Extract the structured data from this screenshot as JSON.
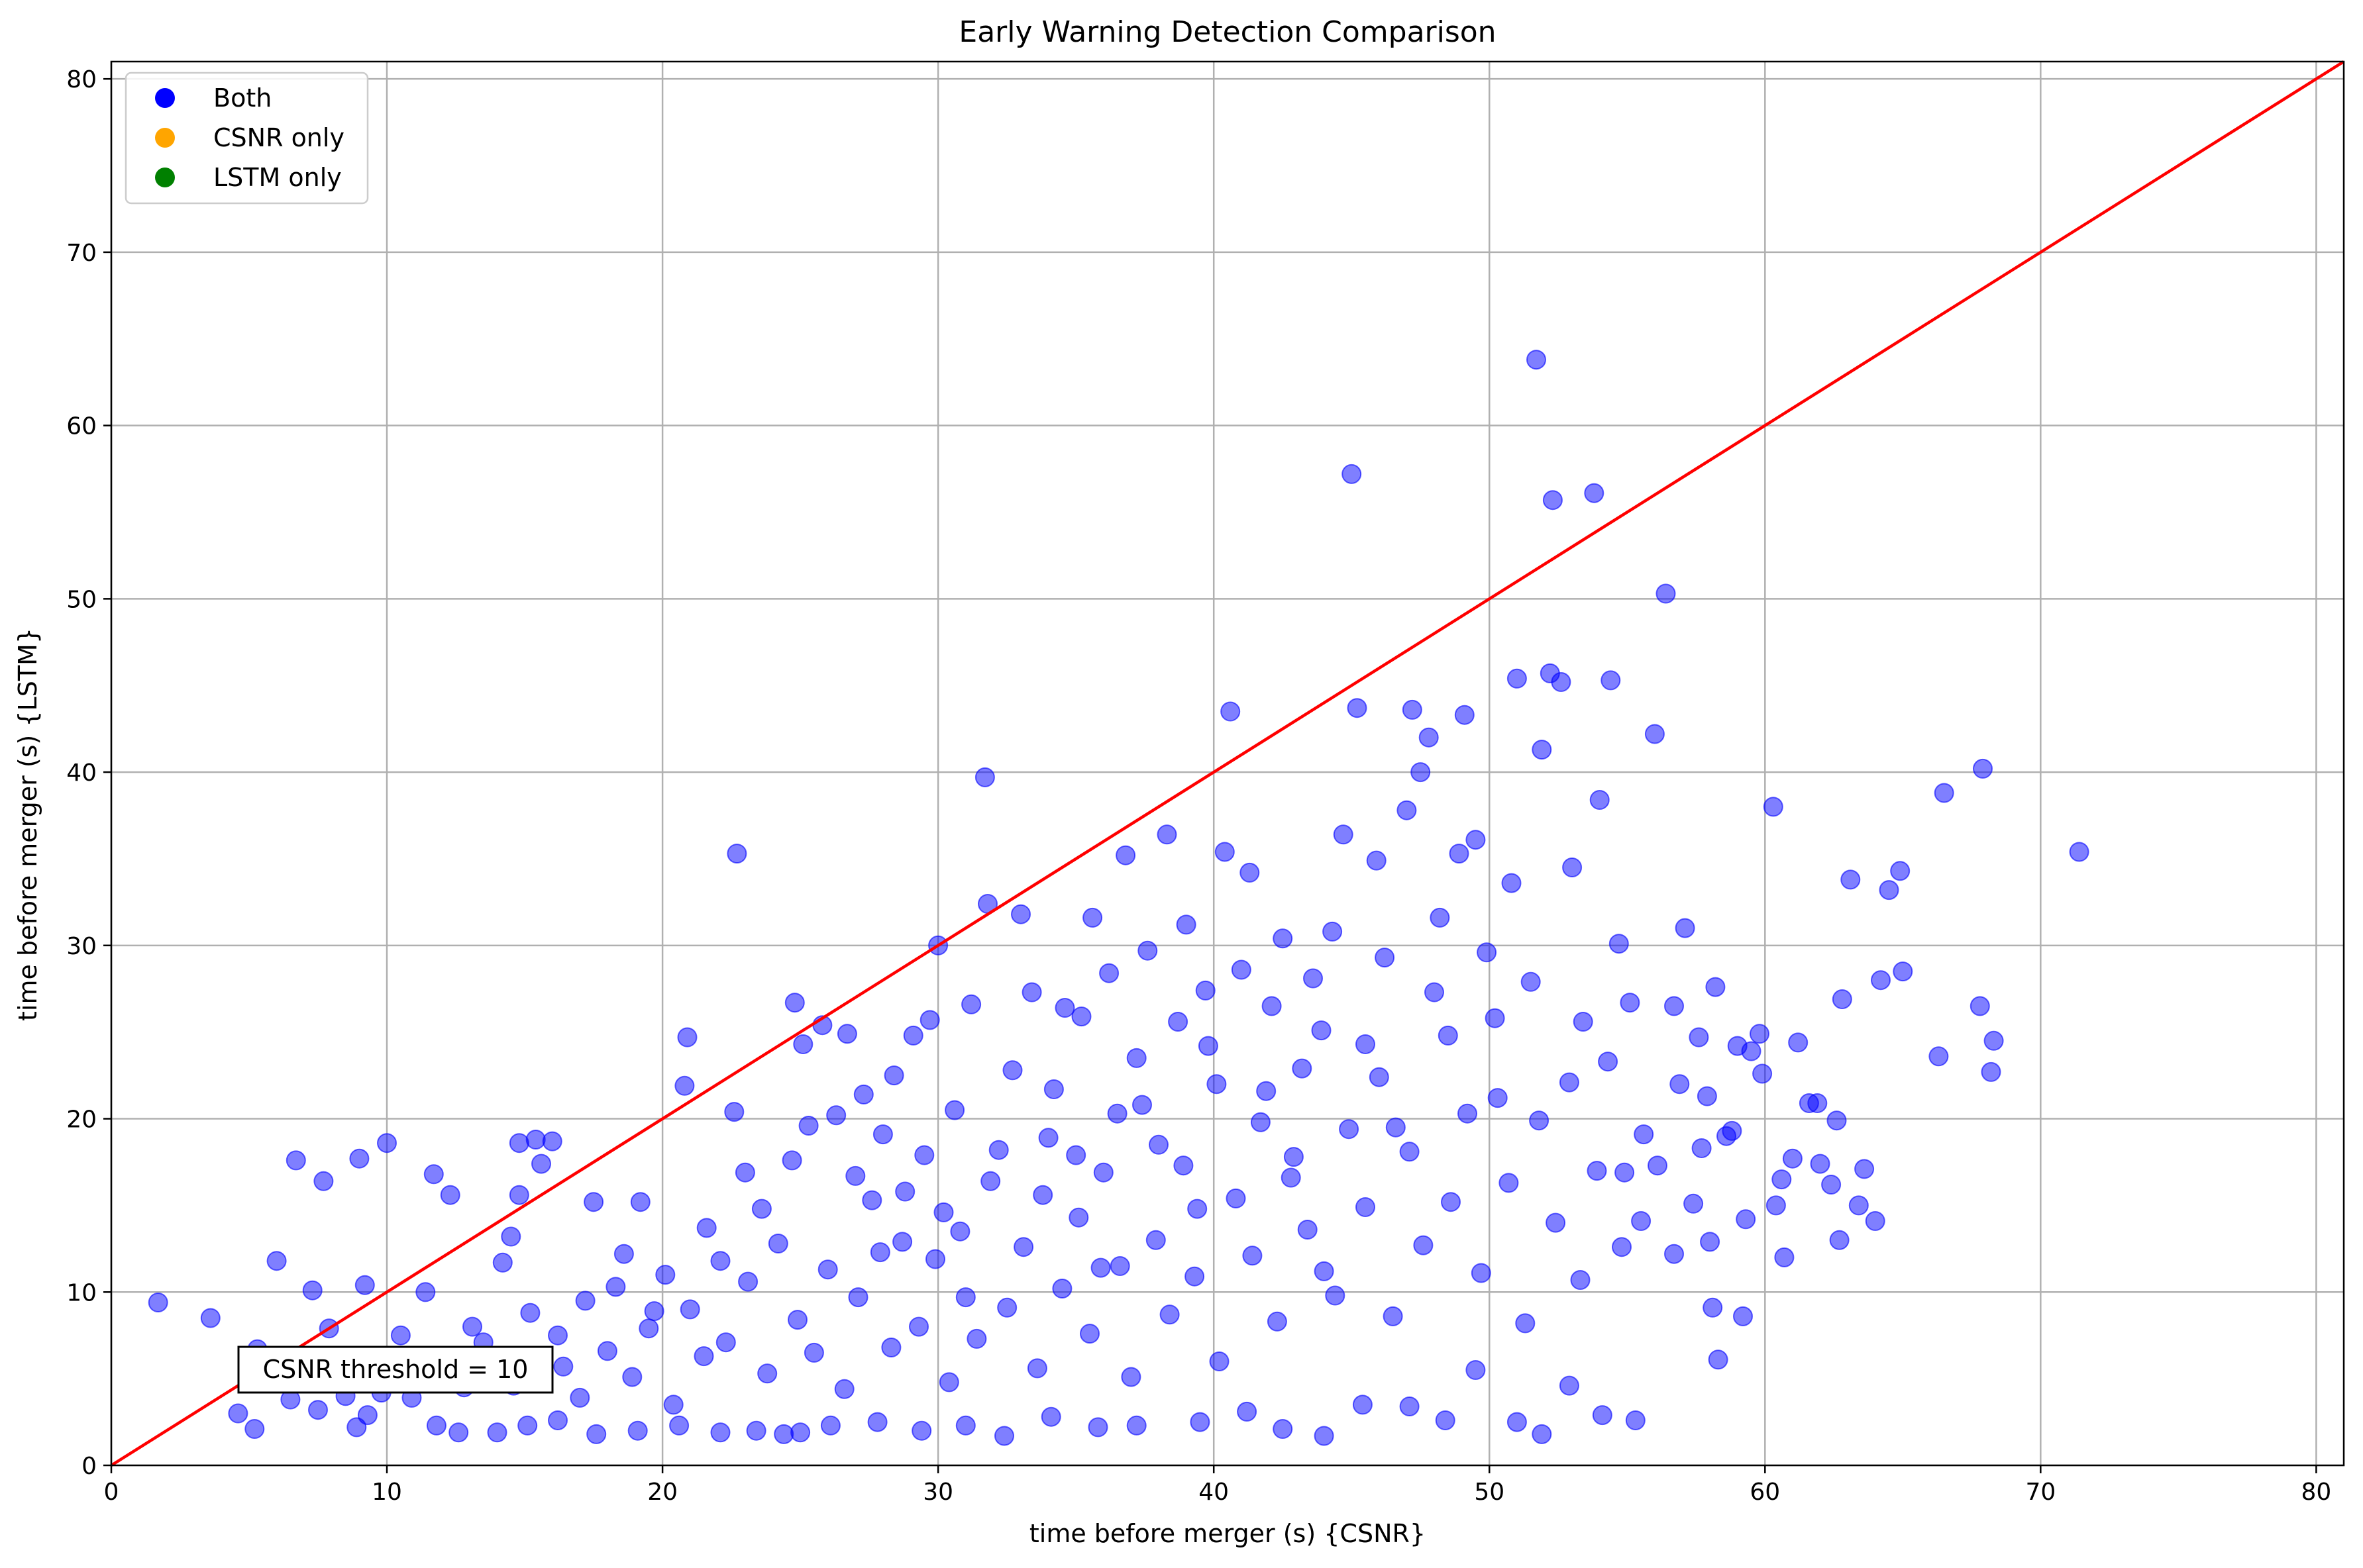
{
  "chart_data": {
    "type": "scatter",
    "title": "Early Warning Detection Comparison",
    "xlabel": "time before merger (s) {CSNR}",
    "ylabel": "time before merger (s) {LSTM}",
    "xlim": [
      0,
      81
    ],
    "ylim": [
      0,
      81
    ],
    "xticks": [
      0,
      10,
      20,
      30,
      40,
      50,
      60,
      70,
      80
    ],
    "yticks": [
      0,
      10,
      20,
      30,
      40,
      50,
      60,
      70,
      80
    ],
    "grid": true,
    "legend_position": "top-left",
    "legend": [
      {
        "label": "Both",
        "color": "#0000ff"
      },
      {
        "label": "CSNR only",
        "color": "#ffa500"
      },
      {
        "label": "LSTM only",
        "color": "#008000"
      }
    ],
    "reference_line": {
      "x": [
        0,
        81
      ],
      "y": [
        0,
        81
      ],
      "color": "#ff0000"
    },
    "annotation": {
      "text": "CSNR threshold = 10",
      "x": 10.2,
      "y": 5.4
    },
    "series": [
      {
        "name": "Both",
        "color": "#0000ff",
        "points": [
          [
            1.7,
            9.4
          ],
          [
            3.6,
            8.5
          ],
          [
            4.6,
            3.0
          ],
          [
            5.2,
            2.1
          ],
          [
            5.3,
            6.7
          ],
          [
            6.0,
            11.8
          ],
          [
            6.5,
            3.8
          ],
          [
            6.7,
            17.6
          ],
          [
            7.3,
            10.1
          ],
          [
            7.7,
            16.4
          ],
          [
            7.9,
            7.9
          ],
          [
            8.9,
            2.2
          ],
          [
            9.0,
            17.7
          ],
          [
            9.2,
            10.4
          ],
          [
            10.0,
            18.6
          ],
          [
            10.5,
            7.5
          ],
          [
            11.4,
            10.0
          ],
          [
            11.7,
            16.8
          ],
          [
            12.3,
            15.6
          ],
          [
            13.1,
            8.0
          ],
          [
            13.7,
            6.2
          ],
          [
            14.2,
            11.7
          ],
          [
            14.5,
            13.2
          ],
          [
            14.8,
            15.6
          ],
          [
            14.8,
            18.6
          ],
          [
            15.4,
            18.8
          ],
          [
            15.6,
            17.4
          ],
          [
            16.0,
            18.7
          ],
          [
            16.2,
            7.5
          ],
          [
            17.0,
            3.9
          ],
          [
            17.5,
            15.2
          ],
          [
            18.3,
            10.3
          ],
          [
            18.9,
            5.1
          ],
          [
            19.2,
            15.2
          ],
          [
            19.7,
            8.9
          ],
          [
            20.4,
            3.5
          ],
          [
            20.8,
            21.9
          ],
          [
            20.9,
            24.7
          ],
          [
            21.5,
            6.3
          ],
          [
            22.1,
            11.8
          ],
          [
            22.6,
            20.4
          ],
          [
            22.7,
            35.3
          ],
          [
            23.0,
            16.9
          ],
          [
            23.6,
            14.8
          ],
          [
            24.4,
            1.8
          ],
          [
            24.7,
            17.6
          ],
          [
            24.8,
            26.7
          ],
          [
            25.1,
            24.3
          ],
          [
            25.3,
            19.6
          ],
          [
            25.8,
            25.4
          ],
          [
            26.3,
            20.2
          ],
          [
            26.7,
            24.9
          ],
          [
            27.0,
            16.7
          ],
          [
            27.3,
            21.4
          ],
          [
            27.6,
            15.3
          ],
          [
            28.0,
            19.1
          ],
          [
            28.4,
            22.5
          ],
          [
            28.7,
            12.9
          ],
          [
            29.1,
            24.8
          ],
          [
            29.5,
            17.9
          ],
          [
            29.7,
            25.7
          ],
          [
            30.0,
            30.0
          ],
          [
            30.2,
            14.6
          ],
          [
            30.6,
            20.5
          ],
          [
            31.0,
            9.7
          ],
          [
            31.2,
            26.6
          ],
          [
            31.7,
            39.7
          ],
          [
            31.8,
            32.4
          ],
          [
            32.2,
            18.2
          ],
          [
            32.7,
            22.8
          ],
          [
            33.0,
            31.8
          ],
          [
            33.4,
            27.3
          ],
          [
            33.8,
            15.6
          ],
          [
            34.2,
            21.7
          ],
          [
            34.6,
            26.4
          ],
          [
            35.0,
            17.9
          ],
          [
            35.2,
            25.9
          ],
          [
            35.6,
            31.6
          ],
          [
            35.9,
            11.4
          ],
          [
            36.2,
            28.4
          ],
          [
            36.5,
            20.3
          ],
          [
            36.8,
            35.2
          ],
          [
            37.2,
            23.5
          ],
          [
            37.6,
            29.7
          ],
          [
            38.0,
            18.5
          ],
          [
            38.3,
            36.4
          ],
          [
            38.7,
            25.6
          ],
          [
            39.0,
            31.2
          ],
          [
            39.4,
            14.8
          ],
          [
            39.7,
            27.4
          ],
          [
            40.1,
            22.0
          ],
          [
            40.4,
            35.4
          ],
          [
            40.6,
            43.5
          ],
          [
            41.0,
            28.6
          ],
          [
            41.3,
            34.2
          ],
          [
            41.7,
            19.8
          ],
          [
            42.1,
            26.5
          ],
          [
            42.5,
            30.4
          ],
          [
            42.8,
            16.6
          ],
          [
            43.2,
            22.9
          ],
          [
            43.6,
            28.1
          ],
          [
            44.0,
            11.2
          ],
          [
            44.3,
            30.8
          ],
          [
            44.7,
            36.4
          ],
          [
            45.0,
            57.2
          ],
          [
            45.2,
            43.7
          ],
          [
            45.5,
            24.3
          ],
          [
            45.9,
            34.9
          ],
          [
            46.2,
            29.3
          ],
          [
            46.6,
            19.5
          ],
          [
            47.0,
            37.8
          ],
          [
            47.2,
            43.6
          ],
          [
            47.5,
            40.0
          ],
          [
            47.8,
            42.0
          ],
          [
            48.2,
            31.6
          ],
          [
            48.5,
            24.8
          ],
          [
            48.9,
            35.3
          ],
          [
            49.1,
            43.3
          ],
          [
            49.5,
            36.1
          ],
          [
            49.9,
            29.6
          ],
          [
            50.3,
            21.2
          ],
          [
            50.8,
            33.6
          ],
          [
            51.0,
            45.4
          ],
          [
            51.5,
            27.9
          ],
          [
            51.7,
            63.8
          ],
          [
            51.9,
            41.3
          ],
          [
            52.2,
            45.7
          ],
          [
            52.3,
            55.7
          ],
          [
            52.6,
            45.2
          ],
          [
            53.0,
            34.5
          ],
          [
            53.4,
            25.6
          ],
          [
            53.8,
            56.1
          ],
          [
            54.0,
            38.4
          ],
          [
            54.4,
            45.3
          ],
          [
            54.7,
            30.1
          ],
          [
            55.1,
            26.7
          ],
          [
            55.5,
            14.1
          ],
          [
            56.0,
            42.2
          ],
          [
            56.4,
            50.3
          ],
          [
            56.7,
            26.5
          ],
          [
            57.1,
            31.0
          ],
          [
            57.6,
            24.7
          ],
          [
            57.9,
            21.3
          ],
          [
            58.2,
            27.6
          ],
          [
            58.6,
            19.0
          ],
          [
            59.0,
            24.2
          ],
          [
            59.5,
            23.9
          ],
          [
            59.8,
            24.9
          ],
          [
            60.3,
            38.0
          ],
          [
            60.6,
            16.5
          ],
          [
            61.2,
            24.4
          ],
          [
            61.6,
            20.9
          ],
          [
            62.0,
            17.4
          ],
          [
            62.6,
            19.9
          ],
          [
            62.8,
            26.9
          ],
          [
            63.1,
            33.8
          ],
          [
            63.6,
            17.1
          ],
          [
            64.2,
            28.0
          ],
          [
            64.5,
            33.2
          ],
          [
            64.9,
            34.3
          ],
          [
            65.0,
            28.5
          ],
          [
            66.3,
            23.6
          ],
          [
            66.5,
            38.8
          ],
          [
            67.8,
            26.5
          ],
          [
            67.9,
            40.2
          ],
          [
            68.2,
            22.7
          ],
          [
            68.3,
            24.5
          ],
          [
            71.4,
            35.4
          ],
          [
            56.7,
            12.2
          ],
          [
            58.1,
            9.1
          ],
          [
            58.3,
            6.1
          ],
          [
            59.2,
            8.6
          ],
          [
            60.7,
            12.0
          ],
          [
            54.8,
            12.6
          ],
          [
            55.3,
            2.6
          ],
          [
            54.1,
            2.9
          ],
          [
            52.9,
            4.6
          ],
          [
            51.9,
            1.8
          ],
          [
            51.0,
            2.5
          ],
          [
            49.5,
            5.5
          ],
          [
            48.4,
            2.6
          ],
          [
            47.1,
            3.4
          ],
          [
            45.4,
            3.5
          ],
          [
            44.0,
            1.7
          ],
          [
            42.5,
            2.1
          ],
          [
            41.2,
            3.1
          ],
          [
            39.5,
            2.5
          ],
          [
            37.2,
            2.3
          ],
          [
            35.8,
            2.2
          ],
          [
            34.1,
            2.8
          ],
          [
            32.4,
            1.7
          ],
          [
            31.0,
            2.3
          ],
          [
            29.4,
            2.0
          ],
          [
            27.8,
            2.5
          ],
          [
            26.1,
            2.3
          ],
          [
            25.0,
            1.9
          ],
          [
            23.4,
            2.0
          ],
          [
            22.1,
            1.9
          ],
          [
            20.6,
            2.3
          ],
          [
            19.1,
            2.0
          ],
          [
            17.6,
            1.8
          ],
          [
            16.2,
            2.6
          ],
          [
            15.1,
            2.3
          ],
          [
            14.0,
            1.9
          ],
          [
            12.6,
            1.9
          ],
          [
            11.8,
            2.3
          ],
          [
            10.9,
            3.9
          ],
          [
            9.8,
            4.2
          ],
          [
            9.3,
            2.9
          ],
          [
            8.5,
            4.0
          ],
          [
            7.5,
            3.2
          ],
          [
            6.8,
            5.3
          ],
          [
            12.1,
            6.2
          ],
          [
            12.8,
            4.5
          ],
          [
            13.5,
            7.1
          ],
          [
            14.6,
            4.6
          ],
          [
            15.2,
            8.8
          ],
          [
            16.4,
            5.7
          ],
          [
            17.2,
            9.5
          ],
          [
            18.0,
            6.6
          ],
          [
            18.6,
            12.2
          ],
          [
            19.5,
            7.9
          ],
          [
            20.1,
            11.0
          ],
          [
            21.0,
            9.0
          ],
          [
            21.6,
            13.7
          ],
          [
            22.3,
            7.1
          ],
          [
            23.1,
            10.6
          ],
          [
            23.8,
            5.3
          ],
          [
            24.2,
            12.8
          ],
          [
            24.9,
            8.4
          ],
          [
            25.5,
            6.5
          ],
          [
            26.0,
            11.3
          ],
          [
            26.6,
            4.4
          ],
          [
            27.1,
            9.7
          ],
          [
            27.9,
            12.3
          ],
          [
            28.3,
            6.8
          ],
          [
            28.8,
            15.8
          ],
          [
            29.3,
            8.0
          ],
          [
            29.9,
            11.9
          ],
          [
            30.4,
            4.8
          ],
          [
            30.8,
            13.5
          ],
          [
            31.4,
            7.3
          ],
          [
            31.9,
            16.4
          ],
          [
            32.5,
            9.1
          ],
          [
            33.1,
            12.6
          ],
          [
            33.6,
            5.6
          ],
          [
            34.0,
            18.9
          ],
          [
            34.5,
            10.2
          ],
          [
            35.1,
            14.3
          ],
          [
            35.5,
            7.6
          ],
          [
            36.0,
            16.9
          ],
          [
            36.6,
            11.5
          ],
          [
            37.0,
            5.1
          ],
          [
            37.4,
            20.8
          ],
          [
            37.9,
            13.0
          ],
          [
            38.4,
            8.7
          ],
          [
            38.9,
            17.3
          ],
          [
            39.3,
            10.9
          ],
          [
            39.8,
            24.2
          ],
          [
            40.2,
            6.0
          ],
          [
            40.8,
            15.4
          ],
          [
            41.4,
            12.1
          ],
          [
            41.9,
            21.6
          ],
          [
            42.3,
            8.3
          ],
          [
            42.9,
            17.8
          ],
          [
            43.4,
            13.6
          ],
          [
            43.9,
            25.1
          ],
          [
            44.4,
            9.8
          ],
          [
            44.9,
            19.4
          ],
          [
            45.5,
            14.9
          ],
          [
            46.0,
            22.4
          ],
          [
            46.5,
            8.6
          ],
          [
            47.1,
            18.1
          ],
          [
            47.6,
            12.7
          ],
          [
            48.0,
            27.3
          ],
          [
            48.6,
            15.2
          ],
          [
            49.2,
            20.3
          ],
          [
            49.7,
            11.1
          ],
          [
            50.2,
            25.8
          ],
          [
            50.7,
            16.3
          ],
          [
            51.3,
            8.2
          ],
          [
            51.8,
            19.9
          ],
          [
            52.4,
            14.0
          ],
          [
            52.9,
            22.1
          ],
          [
            53.3,
            10.7
          ],
          [
            53.9,
            17.0
          ],
          [
            54.3,
            23.3
          ],
          [
            54.9,
            16.9
          ],
          [
            55.6,
            19.1
          ],
          [
            56.1,
            17.3
          ],
          [
            56.9,
            22.0
          ],
          [
            57.4,
            15.1
          ],
          [
            57.7,
            18.3
          ],
          [
            58.0,
            12.9
          ],
          [
            58.8,
            19.3
          ],
          [
            59.3,
            14.2
          ],
          [
            59.9,
            22.6
          ],
          [
            60.4,
            15.0
          ],
          [
            61.0,
            17.7
          ],
          [
            61.9,
            20.9
          ],
          [
            62.4,
            16.2
          ],
          [
            63.4,
            15.0
          ],
          [
            64.0,
            14.1
          ],
          [
            62.7,
            13.0
          ]
        ]
      }
    ]
  }
}
